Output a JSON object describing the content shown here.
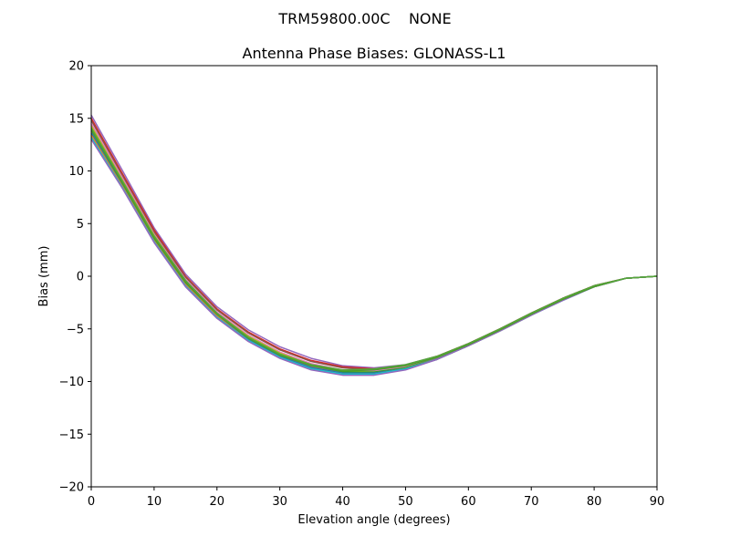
{
  "chart_data": {
    "type": "line",
    "suptitle": "TRM59800.00C    NONE",
    "title": "Antenna Phase Biases: GLONASS-L1",
    "xlabel": "Elevation angle (degrees)",
    "ylabel": "Bias (mm)",
    "xlim": [
      0,
      90
    ],
    "ylim": [
      -20,
      20
    ],
    "xticks": [
      0,
      10,
      20,
      30,
      40,
      50,
      60,
      70,
      80,
      90
    ],
    "yticks": [
      -20,
      -15,
      -10,
      -5,
      0,
      5,
      10,
      15,
      20
    ],
    "ytick_labels": [
      "−20",
      "−15",
      "−10",
      "−5",
      "0",
      "5",
      "10",
      "15",
      "20"
    ],
    "grid": false,
    "legend": "none",
    "x": [
      0,
      5,
      10,
      15,
      20,
      25,
      30,
      35,
      40,
      45,
      50,
      55,
      60,
      65,
      70,
      75,
      80,
      85,
      90
    ],
    "series": [
      {
        "color": "#9467bd",
        "values": [
          15.3,
          10.0,
          4.6,
          0.2,
          -2.9,
          -5.1,
          -6.7,
          -7.8,
          -8.5,
          -8.7,
          -8.4,
          -7.6,
          -6.4,
          -5.0,
          -3.5,
          -2.1,
          -0.9,
          -0.2,
          0.0
        ]
      },
      {
        "color": "#d62728",
        "values": [
          15.0,
          9.7,
          4.4,
          0.0,
          -3.1,
          -5.3,
          -6.9,
          -8.0,
          -8.6,
          -8.8,
          -8.5,
          -7.6,
          -6.4,
          -5.0,
          -3.5,
          -2.1,
          -0.9,
          -0.2,
          0.0
        ]
      },
      {
        "color": "#8c564b",
        "values": [
          14.8,
          9.5,
          4.2,
          -0.1,
          -3.2,
          -5.4,
          -7.0,
          -8.1,
          -8.7,
          -8.9,
          -8.5,
          -7.7,
          -6.4,
          -5.0,
          -3.5,
          -2.1,
          -0.9,
          -0.2,
          0.0
        ]
      },
      {
        "color": "#e377c2",
        "values": [
          14.5,
          9.3,
          4.0,
          -0.3,
          -3.4,
          -5.6,
          -7.2,
          -8.3,
          -8.9,
          -9.0,
          -8.6,
          -7.7,
          -6.5,
          -5.1,
          -3.6,
          -2.2,
          -1.0,
          -0.2,
          0.0
        ]
      },
      {
        "color": "#bcbd22",
        "values": [
          14.3,
          9.1,
          3.9,
          -0.4,
          -3.5,
          -5.7,
          -7.3,
          -8.4,
          -9.0,
          -9.1,
          -8.7,
          -7.8,
          -6.5,
          -5.1,
          -3.6,
          -2.2,
          -1.0,
          -0.2,
          0.0
        ]
      },
      {
        "color": "#2ca02c",
        "values": [
          14.0,
          8.9,
          3.7,
          -0.5,
          -3.6,
          -5.8,
          -7.4,
          -8.5,
          -9.1,
          -9.1,
          -8.7,
          -7.8,
          -6.5,
          -5.1,
          -3.6,
          -2.2,
          -1.0,
          -0.2,
          0.0
        ]
      },
      {
        "color": "#7f7f7f",
        "values": [
          13.8,
          8.7,
          3.5,
          -0.7,
          -3.7,
          -5.9,
          -7.5,
          -8.6,
          -9.2,
          -9.2,
          -8.8,
          -7.8,
          -6.6,
          -5.1,
          -3.6,
          -2.2,
          -1.0,
          -0.2,
          0.0
        ]
      },
      {
        "color": "#1f77b4",
        "values": [
          13.6,
          8.6,
          3.4,
          -0.8,
          -3.8,
          -6.0,
          -7.6,
          -8.7,
          -9.2,
          -9.2,
          -8.8,
          -7.9,
          -6.6,
          -5.2,
          -3.7,
          -2.2,
          -1.0,
          -0.2,
          0.0
        ]
      },
      {
        "color": "#ff7f0e",
        "values": [
          13.4,
          8.5,
          3.4,
          -0.8,
          -3.8,
          -6.1,
          -7.7,
          -8.8,
          -9.3,
          -9.3,
          -8.8,
          -7.9,
          -6.6,
          -5.2,
          -3.7,
          -2.2,
          -1.0,
          -0.2,
          0.0
        ]
      },
      {
        "color": "#17becf",
        "values": [
          13.2,
          8.4,
          3.3,
          -0.9,
          -3.9,
          -6.1,
          -7.7,
          -8.8,
          -9.3,
          -9.3,
          -8.8,
          -7.9,
          -6.6,
          -5.2,
          -3.7,
          -2.3,
          -1.0,
          -0.2,
          0.0
        ]
      },
      {
        "color": "#9467bd",
        "values": [
          13.0,
          8.3,
          3.2,
          -1.0,
          -4.0,
          -6.2,
          -7.8,
          -8.9,
          -9.4,
          -9.4,
          -8.9,
          -7.9,
          -6.6,
          -5.2,
          -3.7,
          -2.3,
          -1.0,
          -0.2,
          0.0
        ]
      },
      {
        "color": "#4c9a2a",
        "values": [
          13.9,
          8.8,
          3.6,
          -0.6,
          -3.6,
          -5.9,
          -7.5,
          -8.5,
          -9.0,
          -8.9,
          -8.5,
          -7.7,
          -6.5,
          -5.1,
          -3.6,
          -2.2,
          -1.0,
          -0.2,
          0.0
        ]
      },
      {
        "color": "#55a63a",
        "values": [
          14.1,
          9.0,
          3.8,
          -0.4,
          -3.5,
          -5.8,
          -7.4,
          -8.4,
          -8.9,
          -8.8,
          -8.4,
          -7.6,
          -6.4,
          -5.0,
          -3.5,
          -2.1,
          -0.9,
          -0.2,
          0.0
        ]
      }
    ]
  }
}
